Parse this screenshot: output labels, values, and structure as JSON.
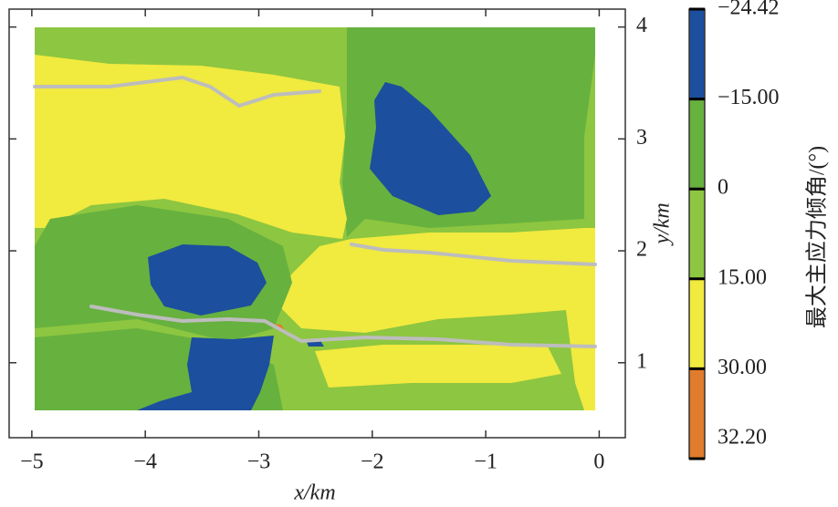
{
  "chart_data": {
    "type": "contour",
    "xlabel": "x/km",
    "ylabel": "y/km",
    "xlim": [
      -5.2,
      0.23
    ],
    "xticks": [
      {
        "value": -5,
        "label": "−5"
      },
      {
        "value": -4,
        "label": "−4"
      },
      {
        "value": -3,
        "label": "−3"
      },
      {
        "value": -2,
        "label": "−2"
      },
      {
        "value": -1,
        "label": "−1"
      },
      0
    ],
    "ylim": [
      0.33,
      4.16
    ],
    "yticks": [
      1,
      2,
      3,
      4
    ],
    "colorbar": {
      "label": "最大主应力倾角/(°)",
      "ticks": [
        {
          "value": -24.42,
          "label": "−24.42"
        },
        {
          "value": -15,
          "label": "−15.00"
        },
        0,
        {
          "value": 15,
          "label": "15.00"
        },
        {
          "value": 30,
          "label": "30.00"
        },
        {
          "value": 32.2,
          "label": "32.20"
        }
      ],
      "colors": [
        "#1c4f9d",
        "#67b13f",
        "#8dc640",
        "#f1ea3f",
        "#e07c2b"
      ]
    }
  }
}
